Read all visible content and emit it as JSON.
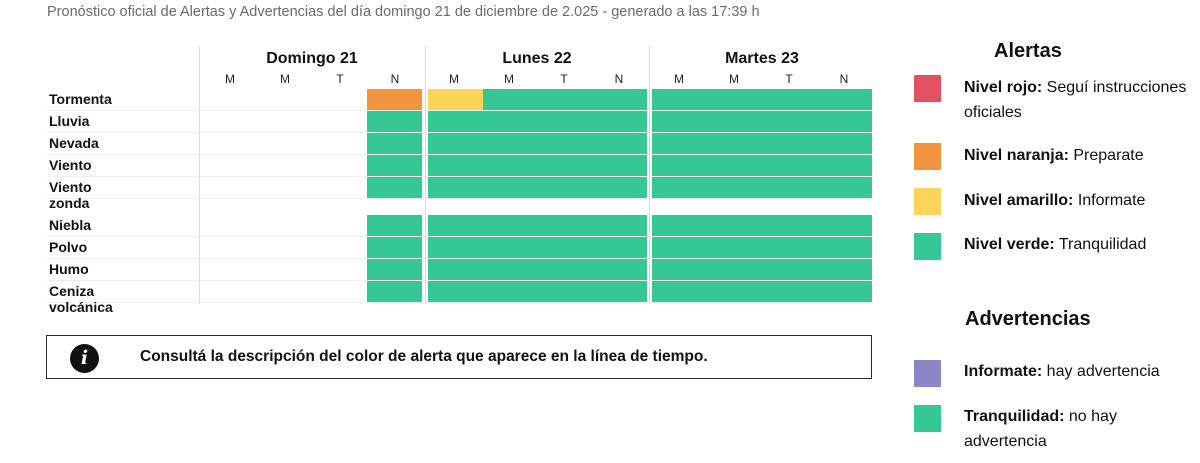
{
  "header": {
    "text": "Pronóstico oficial de Alertas y Advertencias del día domingo 21 de diciembre de 2.025 - generado a las 17:39 h"
  },
  "timeline": {
    "days": [
      {
        "label": "Domingo 21",
        "slots": [
          "M",
          "M",
          "T",
          "N"
        ]
      },
      {
        "label": "Lunes 22",
        "slots": [
          "M",
          "M",
          "T",
          "N"
        ]
      },
      {
        "label": "Martes 23",
        "slots": [
          "M",
          "M",
          "T",
          "N"
        ]
      }
    ],
    "rows": [
      {
        "label": "Tormenta",
        "levels": [
          "none",
          "none",
          "none",
          "naranja",
          "amarillo",
          "verde",
          "verde",
          "verde",
          "verde",
          "verde",
          "verde",
          "verde"
        ]
      },
      {
        "label": "Lluvia",
        "levels": [
          "none",
          "none",
          "none",
          "verde",
          "verde",
          "verde",
          "verde",
          "verde",
          "verde",
          "verde",
          "verde",
          "verde"
        ]
      },
      {
        "label": "Nevada",
        "levels": [
          "none",
          "none",
          "none",
          "verde",
          "verde",
          "verde",
          "verde",
          "verde",
          "verde",
          "verde",
          "verde",
          "verde"
        ]
      },
      {
        "label": "Viento",
        "levels": [
          "none",
          "none",
          "none",
          "verde",
          "verde",
          "verde",
          "verde",
          "verde",
          "verde",
          "verde",
          "verde",
          "verde"
        ]
      },
      {
        "label": "Viento zonda",
        "levels": [
          "none",
          "none",
          "none",
          "verde",
          "verde",
          "verde",
          "verde",
          "verde",
          "verde",
          "verde",
          "verde",
          "verde"
        ]
      },
      {
        "label": "Niebla",
        "levels": [
          "none",
          "none",
          "none",
          "verde",
          "verde",
          "verde",
          "verde",
          "verde",
          "verde",
          "verde",
          "verde",
          "verde"
        ]
      },
      {
        "label": "Polvo",
        "levels": [
          "none",
          "none",
          "none",
          "verde",
          "verde",
          "verde",
          "verde",
          "verde",
          "verde",
          "verde",
          "verde",
          "verde"
        ]
      },
      {
        "label": "Humo",
        "levels": [
          "none",
          "none",
          "none",
          "verde",
          "verde",
          "verde",
          "verde",
          "verde",
          "verde",
          "verde",
          "verde",
          "verde"
        ]
      },
      {
        "label": "Ceniza volcánica",
        "levels": [
          "none",
          "none",
          "none",
          "verde",
          "verde",
          "verde",
          "verde",
          "verde",
          "verde",
          "verde",
          "verde",
          "verde"
        ]
      }
    ]
  },
  "colors": {
    "rojo": "#e05260",
    "naranja": "#f29440",
    "amarillo": "#fdd35a",
    "verde": "#35c794",
    "violeta": "#8b86c6"
  },
  "info": {
    "icon": "info-icon",
    "text": "Consultá la descripción del color de alerta que aparece en la línea de tiempo."
  },
  "legend": {
    "alerts_title": "Alertas",
    "alerts": [
      {
        "strong": "Nivel rojo:",
        "text": " Seguí instrucciones oficiales",
        "color": "#e05260"
      },
      {
        "strong": "Nivel naranja:",
        "text": " Preparate",
        "color": "#f29440"
      },
      {
        "strong": "Nivel amarillo:",
        "text": " Informate",
        "color": "#fdd35a"
      },
      {
        "strong": "Nivel verde:",
        "text": " Tranquilidad",
        "color": "#35c794"
      }
    ],
    "warnings_title": "Advertencias",
    "warnings": [
      {
        "strong": "Informate:",
        "text": " hay advertencia",
        "color": "#8b86c6"
      },
      {
        "strong": "Tranquilidad:",
        "text": " no hay advertencia",
        "color": "#35c794"
      }
    ]
  }
}
